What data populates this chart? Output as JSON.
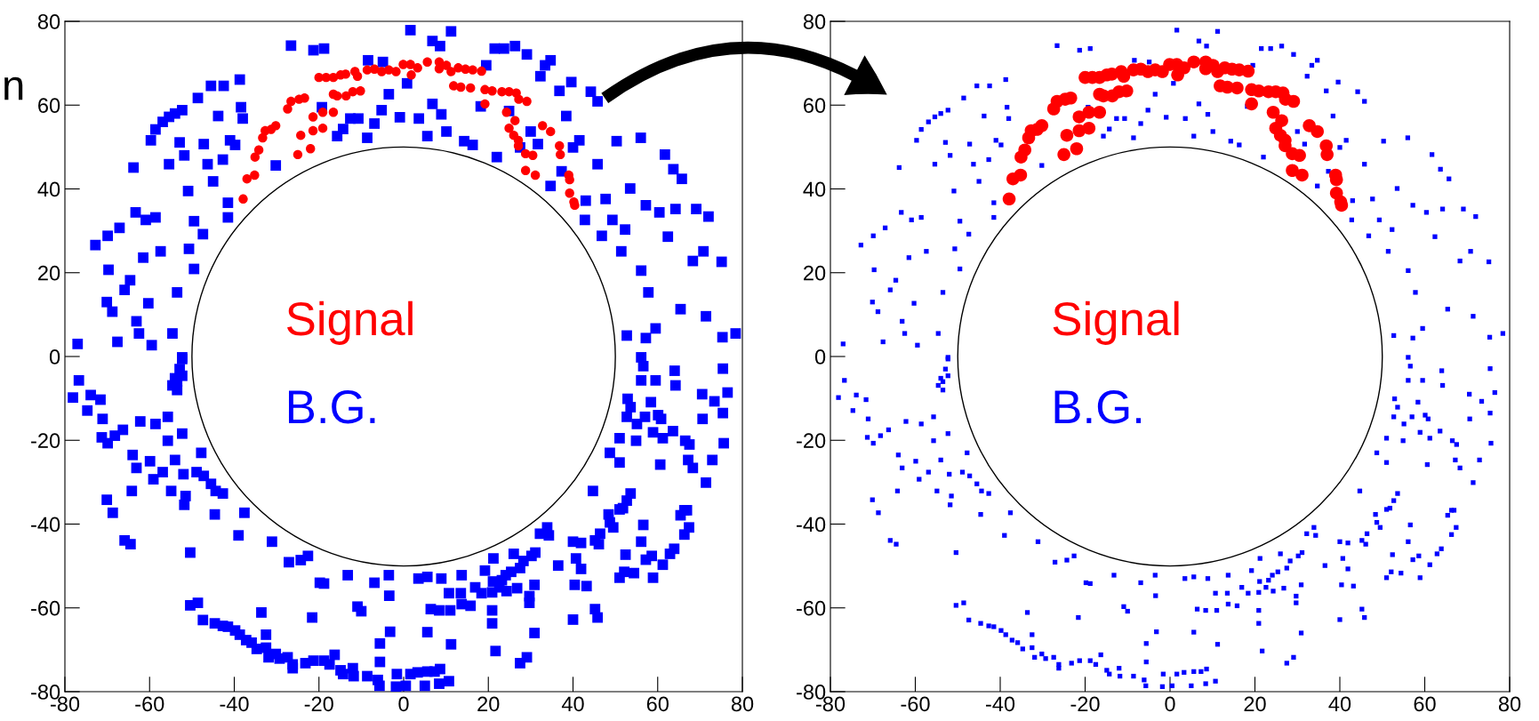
{
  "chart_data": [
    {
      "type": "scatter",
      "xlim": [
        -80,
        80
      ],
      "ylim": [
        -80,
        80
      ],
      "xticks": [
        -80,
        -60,
        -40,
        -20,
        0,
        20,
        40,
        60,
        80
      ],
      "yticks": [
        -80,
        -60,
        -40,
        -20,
        0,
        20,
        40,
        60,
        80
      ],
      "grid": false,
      "legend": false,
      "annotations": [
        "n"
      ],
      "series": [
        {
          "name": "Signal",
          "color": "#ff0000",
          "marker": "circle",
          "x": [
            -37.9,
            -37,
            -35.2,
            -35.1,
            -34.2,
            -33.3,
            -32.7,
            -31.3,
            -30.2,
            -27.4,
            -26.6,
            -24.7,
            -23.4,
            -25,
            -24.3,
            -22,
            -21.4,
            -21.4,
            -19.1,
            -19.1,
            -16.6,
            -16.6,
            -15.7,
            -13.6,
            -12,
            -10.2,
            -20,
            -18.3,
            -16.6,
            -14.9,
            -13.7,
            -11.5,
            -10.9,
            -8.6,
            -6.9,
            -5.2,
            -3.5,
            -1.8,
            -0.1,
            1.6,
            1.8,
            3.3,
            5.6,
            8.4,
            8.4,
            10.1,
            11.2,
            12.9,
            14.6,
            16.3,
            18.4,
            11.8,
            13.5,
            15.8,
            19.2,
            20.9,
            23.2,
            24.9,
            26.6,
            27.2,
            29.1,
            19.2,
            24.3,
            26.3,
            24.9,
            26,
            27.1,
            27.1,
            28.8,
            30.5,
            28.8,
            31.1,
            32.8,
            34.7,
            36.8,
            37,
            39,
            39.2,
            39.2,
            40.2,
            40.4
          ],
          "values": [
            37.6,
            42.4,
            43.3,
            47.6,
            49.3,
            52.2,
            53.9,
            54.2,
            55.1,
            59.1,
            60.9,
            61.4,
            61.7,
            48.2,
            52.8,
            49.6,
            53.9,
            57.2,
            58.3,
            54.5,
            58.3,
            62.6,
            62.2,
            62.2,
            63.2,
            63.4,
            66.6,
            66.6,
            66.6,
            67.2,
            67.4,
            68,
            66.9,
            68.4,
            68.6,
            68,
            68.4,
            68,
            69.7,
            69.7,
            67.2,
            68.9,
            70.3,
            70.3,
            68.7,
            69.5,
            68,
            68.9,
            68.6,
            68.4,
            68.1,
            64.6,
            64.3,
            64.1,
            63.7,
            63.4,
            63.2,
            63.2,
            62.9,
            61.4,
            60.9,
            60.3,
            58.3,
            56.3,
            54.5,
            52.8,
            51.6,
            50.3,
            48.4,
            48,
            44.4,
            43.3,
            55.1,
            53.7,
            50.3,
            48.2,
            43.3,
            42.2,
            39,
            36.9,
            36.1
          ]
        },
        {
          "name": "B.G.",
          "color": "#0000ff",
          "marker": "square",
          "x": [
            -77,
            -72.8,
            -69.9,
            -69.7,
            -70.1,
            -68.8,
            -67.6,
            -67.1,
            -65.9,
            -64.6,
            -63.8,
            -63.3,
            -63.1,
            -62.5,
            -61.5,
            -60.9,
            -60.3,
            -59.5,
            -59.7,
            -58.6,
            -56.9,
            -55.4,
            -54,
            -52.3,
            -57.4,
            -58.6,
            -54.6,
            -53.5,
            -52.3,
            -55.4,
            -52.9,
            -51.8,
            -50.9,
            -50.7,
            -49.5,
            -48.6,
            -47.2,
            -46.3,
            -45.5,
            -45,
            -43.8,
            -42.7,
            -42.5,
            -41.5,
            -41,
            -39.8,
            -38.7,
            -38.4,
            -49.5,
            -47.4,
            -41.5,
            -38,
            -30.2,
            -26.6,
            -21.3,
            -18.8,
            -19.3,
            -15.7,
            -14.3,
            -12.6,
            -8.6,
            -10.7,
            -6.9,
            -5.2,
            -3.5,
            -0.9,
            -8.4,
            -4.9,
            0.8,
            1.6,
            3.6,
            5.6,
            6.8,
            6.8,
            8.6,
            8.9,
            10.1,
            11.2,
            14.3,
            16.3,
            18.2,
            19.5,
            21.5,
            23.7,
            26.3,
            29.1,
            22,
            24.9,
            27.5,
            30,
            31.7,
            32.3,
            33.4,
            34.7,
            36.8,
            38.4,
            34.7,
            37.3,
            39.6,
            40,
            41.5,
            43,
            42.8,
            44.2,
            45.8,
            45.8,
            46.8,
            47.7,
            49.3,
            50.3,
            51.4,
            53.5,
            52.3,
            56,
            57.2,
            56.1,
            57.8,
            60.4,
            61.7,
            62.4,
            63.7,
            65.7,
            64.2,
            65.4,
            68.3,
            69.1,
            72,
            70.8,
            71.4,
            75.1,
            75.3,
            78.4,
            59.5,
            57.2,
            56.1,
            52.7,
            -78.1,
            -76.7,
            -74.7,
            -73.9,
            -71.6,
            -71.1,
            -71.3,
            -69.9,
            -68.2,
            -66.3,
            -70.1,
            -68.7,
            -65.9,
            -64.5,
            -64,
            -63.1,
            -62.2,
            -64.2,
            -59.9,
            -59.1,
            -58.6,
            -56.9,
            -55.7,
            -55.7,
            -54.9,
            -54,
            -52.3,
            -52,
            -51.8,
            -51.5,
            -50.4,
            -50.4,
            -48.9,
            -48.6,
            -47.8,
            -47.2,
            -47.4,
            -45.5,
            -44.4,
            -42.7,
            -44.6,
            -44.6,
            -42.7,
            -41.5,
            -39.8,
            -39,
            -37.6,
            -38.7,
            -37.2,
            -35.9,
            -34.7,
            -33.6,
            -32.5,
            -32.5,
            -31.9,
            -31.1,
            -30.2,
            -29.3,
            -27.4,
            -27.1,
            -26.2,
            -26.2,
            -24.3,
            -23.2,
            -22.6,
            -21.6,
            -21.3,
            -19.8,
            -18.8,
            -18.8,
            -17.5,
            -16.3,
            -14.9,
            -13.2,
            -14.3,
            -12,
            -11.8,
            -10.9,
            -10,
            -8.6,
            -6.9,
            -6.1,
            -5.7,
            -5.6,
            -5.6,
            -3.5,
            -3.4,
            -3.2,
            -1.6,
            -1.8,
            0.5,
            1.6,
            3.5,
            3.3,
            5,
            5.6,
            5.6,
            5.6,
            6.4,
            7.3,
            8.4,
            8.4,
            8.6,
            8.9,
            10.7,
            11,
            11.2,
            10.7,
            13.5,
            13.7,
            13.7,
            15.8,
            16.9,
            18.4,
            19.2,
            20.9,
            21.1,
            21.2,
            20.9,
            20.9,
            21.7,
            22.6,
            23.2,
            24.1,
            24.3,
            25.4,
            26,
            26.8,
            27.5,
            27.5,
            28.3,
            29.1,
            29.7,
            29.7,
            30.2,
            30.9,
            31.1,
            30.9,
            32.2,
            33.9,
            34.3,
            36.5,
            40,
            40,
            40.4,
            40.7,
            41.9,
            41.9,
            43.2,
            44.7,
            45.2,
            45.2,
            46.1,
            45.8,
            46.4,
            48.4,
            48.7,
            48.7,
            49.5,
            51,
            51,
            51,
            51,
            51.8,
            52.1,
            52.4,
            52.7,
            52.7,
            52.9,
            53.6,
            54.4,
            53.6,
            54.9,
            55.1,
            56.1,
            56.1,
            56.6,
            56.6,
            57,
            57.2,
            58.4,
            58.6,
            58.9,
            58.9,
            59.5,
            60.1,
            60.6,
            60.8,
            61.2,
            61.2,
            62.9,
            63.6,
            63.9,
            64,
            64.2,
            65.4,
            66.3,
            66.5,
            66.3,
            66.9,
            67.2,
            67.4,
            67.5,
            68.3,
            70.5,
            70.6,
            71.4,
            72.9,
            73.4,
            75.4,
            75.4,
            75.6,
            76.5,
            -52.9,
            -53.5,
            -54,
            -52.3,
            -52.3,
            -53.5,
            -54.6
          ],
          "values": [
            3,
            26.6,
            28.8,
            20.7,
            13,
            10.7,
            3.5,
            30.7,
            15.9,
            18.2,
            45.1,
            34.4,
            8.4,
            5.5,
            23.6,
            32.6,
            12.7,
            2.7,
            51.6,
            54.2,
            56,
            57.2,
            58,
            58.8,
            25.1,
            33.2,
            5.5,
            15.3,
            -0.2,
            45.9,
            51.1,
            48,
            39.5,
            25.7,
            32.3,
            61.7,
            50.7,
            45.9,
            64.6,
            41.8,
            57.4,
            47,
            64.6,
            36.7,
            51.6,
            50.5,
            66.1,
            59.5,
            20.9,
            29.2,
            33.2,
            56.8,
            45.6,
            74.2,
            73.1,
            73.5,
            59.5,
            52.6,
            54.3,
            56.8,
            52.2,
            56.8,
            55.6,
            58.8,
            62.6,
            57.1,
            70.7,
            70.3,
            65.2,
            77.9,
            56.8,
            52.6,
            60.3,
            75.3,
            74.1,
            57.8,
            53.7,
            77.6,
            51.4,
            50.5,
            59.7,
            69.5,
            73.5,
            73.5,
            74.1,
            72.1,
            47.6,
            58.6,
            49.9,
            53.7,
            50.7,
            66.9,
            69.5,
            70.7,
            63.4,
            57.4,
            40.7,
            44.2,
            65.5,
            49.9,
            51.6,
            37.2,
            32.6,
            63.2,
            60.9,
            45.9,
            28.8,
            37.6,
            32.6,
            51.4,
            25.1,
            40.1,
            30.3,
            52.2,
            36.1,
            20.5,
            15.3,
            34.4,
            48.2,
            28.6,
            44.7,
            42.4,
            35.2,
            11.3,
            22.8,
            35.2,
            33.4,
            25.1,
            9.6,
            22.6,
            4.6,
            5.5,
            6.7,
            4.4,
            -0.2,
            5,
            -9.8,
            -5.7,
            -12.9,
            -9.2,
            -10.3,
            -14.9,
            -19.3,
            -20.7,
            -18.9,
            -17.5,
            -34.2,
            -37.3,
            -43.9,
            -44.8,
            -23.5,
            -26.6,
            -15.5,
            -32.1,
            -25,
            -29.3,
            -16.1,
            -27.6,
            -20.1,
            -14.4,
            -32.1,
            -24.7,
            -18.4,
            -28.1,
            -35.4,
            -33.3,
            -46.8,
            -59.4,
            -27.6,
            -58.8,
            -23,
            -28.5,
            -62.9,
            -30.4,
            -32.1,
            -32.7,
            -37.7,
            -63.7,
            -64.3,
            -64.5,
            -65.4,
            -42.7,
            -37.3,
            -66.4,
            -67.7,
            -68.3,
            -69.8,
            -61.1,
            -66.4,
            -69.5,
            -71.8,
            -44.2,
            -71,
            -72.1,
            -71.8,
            -49.1,
            -73.5,
            -74.4,
            -48.6,
            -73.2,
            -47.6,
            -62.3,
            -72.6,
            -54,
            -54.2,
            -72.6,
            -73.5,
            -71.2,
            -74.9,
            -52.2,
            -75.8,
            -74.4,
            -76.3,
            -59.7,
            -60.8,
            -76.3,
            -54,
            -77.2,
            -78.6,
            -68.5,
            -72.9,
            -52.2,
            -57.1,
            -65.7,
            -75.8,
            -78.8,
            -78.6,
            -75.8,
            -53,
            -75.4,
            -78.6,
            -52.6,
            -75.2,
            -65.8,
            -60.3,
            -75.2,
            -78.1,
            -60.6,
            -74.6,
            -53,
            -56.5,
            -60.6,
            -68.7,
            -77.5,
            -56.5,
            -52.2,
            -59.1,
            -59.5,
            -55.1,
            -56.5,
            -51.1,
            -56.3,
            -53.7,
            -48.2,
            -60.6,
            -63.7,
            -70.3,
            -55.1,
            -53.4,
            -52.2,
            -56,
            -51.4,
            -47.1,
            -55.3,
            -50.5,
            -73.2,
            -48.8,
            -71.8,
            -57.2,
            -58.8,
            -47.6,
            -54.5,
            -46.8,
            -66,
            -42.3,
            -40.8,
            -42.7,
            -49.9,
            -44.2,
            -62.8,
            -54.5,
            -48.2,
            -44.5,
            -50.7,
            -54.8,
            -32.1,
            -60.3,
            -43.9,
            -44.8,
            -62.3,
            -42.3,
            -37.7,
            -39.6,
            -23,
            -40.8,
            -36.5,
            -52.8,
            -19.5,
            -25.3,
            -36.2,
            -51.4,
            -47.3,
            -14.4,
            -34.4,
            -10.1,
            -32.7,
            -51.7,
            -12.1,
            -20.1,
            -16.1,
            -5.7,
            -44.2,
            -40.2,
            -2.3,
            -14.4,
            -48.5,
            -10.9,
            -47.6,
            -18.1,
            -52.8,
            -5.7,
            -14,
            -25.8,
            -14.9,
            -19.5,
            -49.7,
            -47.1,
            -17.8,
            -45.9,
            -3.4,
            -6.9,
            -37.9,
            -36.7,
            -20.1,
            -42.5,
            -36.7,
            -24.7,
            -40.8,
            -21,
            -26.6,
            -9,
            -14.9,
            -30.1,
            -24.7,
            -10.7,
            -13.5,
            -2.9,
            -20.7,
            -8.6,
            -3,
            -6,
            -5.2,
            -0.6,
            -4.6,
            -8,
            -6.9
          ]
        }
      ]
    },
    {
      "type": "scatter",
      "xlim": [
        -80,
        80
      ],
      "ylim": [
        -80,
        80
      ],
      "xticks": [
        -80,
        -60,
        -40,
        -20,
        0,
        20,
        40,
        60,
        80
      ],
      "yticks": [
        -80,
        -60,
        -40,
        -20,
        0,
        20,
        40,
        60,
        80
      ],
      "grid": false,
      "legend": false,
      "series": [
        {
          "name": "Signal",
          "color": "#ff0000",
          "marker": "circle",
          "x": [
            -37.9,
            -37,
            -35.2,
            -35.1,
            -34.2,
            -33.3,
            -32.7,
            -31.3,
            -30.2,
            -27.4,
            -26.6,
            -24.7,
            -23.4,
            -25,
            -24.3,
            -22,
            -21.4,
            -21.4,
            -19.1,
            -19.1,
            -16.6,
            -16.6,
            -15.7,
            -13.6,
            -12,
            -10.2,
            -20,
            -18.3,
            -16.6,
            -14.9,
            -13.7,
            -11.5,
            -10.9,
            -8.6,
            -6.9,
            -5.2,
            -3.5,
            -1.8,
            -0.1,
            1.6,
            1.8,
            3.3,
            5.6,
            8.4,
            8.4,
            10.1,
            11.2,
            12.9,
            14.6,
            16.3,
            18.4,
            11.8,
            13.5,
            15.8,
            19.2,
            20.9,
            23.2,
            24.9,
            26.6,
            27.2,
            29.1,
            19.2,
            24.3,
            26.3,
            24.9,
            26,
            27.1,
            27.1,
            28.8,
            30.5,
            28.8,
            31.1,
            32.8,
            34.7,
            36.8,
            37,
            39,
            39.2,
            39.2,
            40.2,
            40.4
          ],
          "values": [
            37.6,
            42.4,
            43.3,
            47.6,
            49.3,
            52.2,
            53.9,
            54.2,
            55.1,
            59.1,
            60.9,
            61.4,
            61.7,
            48.2,
            52.8,
            49.6,
            53.9,
            57.2,
            58.3,
            54.5,
            58.3,
            62.6,
            62.2,
            62.2,
            63.2,
            63.4,
            66.6,
            66.6,
            66.6,
            67.2,
            67.4,
            68,
            66.9,
            68.4,
            68.6,
            68,
            68.4,
            68,
            69.7,
            69.7,
            67.2,
            68.9,
            70.3,
            70.3,
            68.7,
            69.5,
            68,
            68.9,
            68.6,
            68.4,
            68.1,
            64.6,
            64.3,
            64.1,
            63.7,
            63.4,
            63.2,
            63.2,
            62.9,
            61.4,
            60.9,
            60.3,
            58.3,
            56.3,
            54.5,
            52.8,
            51.6,
            50.3,
            48.4,
            48,
            44.4,
            43.3,
            55.1,
            53.7,
            50.3,
            48.2,
            43.3,
            42.2,
            39,
            36.9,
            36.1
          ]
        },
        {
          "name": "B.G.",
          "color": "#0000ff",
          "marker": "square",
          "x": [
            -77,
            -72.8,
            -69.9,
            -69.7,
            -70.1,
            -68.8,
            -67.6,
            -67.1,
            -65.9,
            -64.6,
            -63.8,
            -63.3,
            -63.1,
            -62.5,
            -61.5,
            -60.9,
            -60.3,
            -59.5,
            -59.7,
            -58.6,
            -56.9,
            -55.4,
            -54,
            -52.3,
            -57.4,
            -58.6,
            -54.6,
            -53.5,
            -52.3,
            -55.4,
            -52.9,
            -51.8,
            -50.9,
            -50.7,
            -49.5,
            -48.6,
            -47.2,
            -46.3,
            -45.5,
            -45,
            -43.8,
            -42.7,
            -42.5,
            -41.5,
            -41,
            -39.8,
            -38.7,
            -38.4,
            -49.5,
            -47.4,
            -41.5,
            -38,
            -30.2,
            -26.6,
            -21.3,
            -18.8,
            -19.3,
            -15.7,
            -14.3,
            -12.6,
            -8.6,
            -10.7,
            -6.9,
            -5.2,
            -3.5,
            -0.9,
            -8.4,
            -4.9,
            0.8,
            1.6,
            3.6,
            5.6,
            6.8,
            6.8,
            8.6,
            8.9,
            10.1,
            11.2,
            14.3,
            16.3,
            18.2,
            19.5,
            21.5,
            23.7,
            26.3,
            29.1,
            22,
            24.9,
            27.5,
            30,
            31.7,
            32.3,
            33.4,
            34.7,
            36.8,
            38.4,
            34.7,
            37.3,
            39.6,
            40,
            41.5,
            43,
            42.8,
            44.2,
            45.8,
            45.8,
            46.8,
            47.7,
            49.3,
            50.3,
            51.4,
            53.5,
            52.3,
            56,
            57.2,
            56.1,
            57.8,
            60.4,
            61.7,
            62.4,
            63.7,
            65.7,
            64.2,
            65.4,
            68.3,
            69.1,
            72,
            70.8,
            71.4,
            75.1,
            75.3,
            78.4,
            59.5,
            57.2,
            56.1,
            52.7,
            -78.1,
            -76.7,
            -74.7,
            -73.9,
            -71.6,
            -71.1,
            -71.3,
            -69.9,
            -68.2,
            -66.3,
            -70.1,
            -68.7,
            -65.9,
            -64.5,
            -64,
            -63.1,
            -62.2,
            -64.2,
            -59.9,
            -59.1,
            -58.6,
            -56.9,
            -55.7,
            -55.7,
            -54.9,
            -54,
            -52.3,
            -52,
            -51.8,
            -51.5,
            -50.4,
            -50.4,
            -48.9,
            -48.6,
            -47.8,
            -47.2,
            -47.4,
            -45.5,
            -44.4,
            -42.7,
            -44.6,
            -44.6,
            -42.7,
            -41.5,
            -39.8,
            -39,
            -37.6,
            -38.7,
            -37.2,
            -35.9,
            -34.7,
            -33.6,
            -32.5,
            -32.5,
            -31.9,
            -31.1,
            -30.2,
            -29.3,
            -27.4,
            -27.1,
            -26.2,
            -26.2,
            -24.3,
            -23.2,
            -22.6,
            -21.6,
            -21.3,
            -19.8,
            -18.8,
            -18.8,
            -17.5,
            -16.3,
            -14.9,
            -13.2,
            -14.3,
            -12,
            -11.8,
            -10.9,
            -10,
            -8.6,
            -6.9,
            -6.1,
            -5.7,
            -5.6,
            -5.6,
            -3.5,
            -3.4,
            -3.2,
            -1.6,
            -1.8,
            0.5,
            1.6,
            3.5,
            3.3,
            5,
            5.6,
            5.6,
            5.6,
            6.4,
            7.3,
            8.4,
            8.4,
            8.6,
            8.9,
            10.7,
            11,
            11.2,
            10.7,
            13.5,
            13.7,
            13.7,
            15.8,
            16.9,
            18.4,
            19.2,
            20.9,
            21.1,
            21.2,
            20.9,
            20.9,
            21.7,
            22.6,
            23.2,
            24.1,
            24.3,
            25.4,
            26,
            26.8,
            27.5,
            27.5,
            28.3,
            29.1,
            29.7,
            29.7,
            30.2,
            30.9,
            31.1,
            30.9,
            32.2,
            33.9,
            34.3,
            36.5,
            40,
            40,
            40.4,
            40.7,
            41.9,
            41.9,
            43.2,
            44.7,
            45.2,
            45.2,
            46.1,
            45.8,
            46.4,
            48.4,
            48.7,
            48.7,
            49.5,
            51,
            51,
            51,
            51,
            51.8,
            52.1,
            52.4,
            52.7,
            52.7,
            52.9,
            53.6,
            54.4,
            53.6,
            54.9,
            55.1,
            56.1,
            56.1,
            56.6,
            56.6,
            57,
            57.2,
            58.4,
            58.6,
            58.9,
            58.9,
            59.5,
            60.1,
            60.6,
            60.8,
            61.2,
            61.2,
            62.9,
            63.6,
            63.9,
            64,
            64.2,
            65.4,
            66.3,
            66.5,
            66.3,
            66.9,
            67.2,
            67.4,
            67.5,
            68.3,
            70.5,
            70.6,
            71.4,
            72.9,
            73.4,
            75.4,
            75.4,
            75.6,
            76.5,
            -52.9,
            -53.5,
            -54,
            -52.3,
            -52.3,
            -53.5,
            -54.6
          ],
          "values": [
            3,
            26.6,
            28.8,
            20.7,
            13,
            10.7,
            3.5,
            30.7,
            15.9,
            18.2,
            45.1,
            34.4,
            8.4,
            5.5,
            23.6,
            32.6,
            12.7,
            2.7,
            51.6,
            54.2,
            56,
            57.2,
            58,
            58.8,
            25.1,
            33.2,
            5.5,
            15.3,
            -0.2,
            45.9,
            51.1,
            48,
            39.5,
            25.7,
            32.3,
            61.7,
            50.7,
            45.9,
            64.6,
            41.8,
            57.4,
            47,
            64.6,
            36.7,
            51.6,
            50.5,
            66.1,
            59.5,
            20.9,
            29.2,
            33.2,
            56.8,
            45.6,
            74.2,
            73.1,
            73.5,
            59.5,
            52.6,
            54.3,
            56.8,
            52.2,
            56.8,
            55.6,
            58.8,
            62.6,
            57.1,
            70.7,
            70.3,
            65.2,
            77.9,
            56.8,
            52.6,
            60.3,
            75.3,
            74.1,
            57.8,
            53.7,
            77.6,
            51.4,
            50.5,
            59.7,
            69.5,
            73.5,
            73.5,
            74.1,
            72.1,
            47.6,
            null,
            null,
            53.7,
            50.7,
            66.9,
            69.5,
            70.7,
            63.4,
            57.4,
            40.7,
            44.2,
            65.5,
            49.9,
            51.6,
            37.2,
            32.6,
            63.2,
            60.9,
            45.9,
            28.8,
            37.6,
            32.6,
            51.4,
            25.1,
            40.1,
            30.3,
            52.2,
            36.1,
            20.5,
            15.3,
            34.4,
            48.2,
            28.6,
            44.7,
            42.4,
            35.2,
            11.3,
            22.8,
            35.2,
            33.4,
            25.1,
            9.6,
            22.6,
            4.6,
            5.5,
            6.7,
            4.4,
            -0.2,
            5,
            -9.8,
            -5.7,
            -12.9,
            -9.2,
            -10.3,
            -14.9,
            -19.3,
            -20.7,
            -18.9,
            -17.5,
            -34.2,
            -37.3,
            -43.9,
            -44.8,
            -23.5,
            -26.6,
            -15.5,
            -32.1,
            -25,
            -29.3,
            -16.1,
            -27.6,
            -20.1,
            -14.4,
            -32.1,
            -24.7,
            -18.4,
            -28.1,
            -35.4,
            -33.3,
            -46.8,
            -59.4,
            -27.6,
            -58.8,
            -23,
            -28.5,
            -62.9,
            -30.4,
            -32.1,
            -32.7,
            -37.7,
            -63.7,
            -64.3,
            -64.5,
            -65.4,
            -42.7,
            -37.3,
            -66.4,
            -67.7,
            -68.3,
            -69.8,
            -61.1,
            -66.4,
            -69.5,
            -71.8,
            -44.2,
            -71,
            -72.1,
            -71.8,
            -49.1,
            -73.5,
            -74.4,
            -48.6,
            -73.2,
            -47.6,
            -62.3,
            -72.6,
            -54,
            -54.2,
            -72.6,
            -73.5,
            -71.2,
            -74.9,
            -52.2,
            -75.8,
            -74.4,
            -76.3,
            -59.7,
            -60.8,
            -76.3,
            -54,
            -77.2,
            -78.6,
            -68.5,
            -72.9,
            -52.2,
            -57.1,
            -65.7,
            -75.8,
            -78.8,
            -78.6,
            -75.8,
            -53,
            -75.4,
            -78.6,
            -52.6,
            -75.2,
            -65.8,
            -60.3,
            -75.2,
            -78.1,
            -60.6,
            -74.6,
            -53,
            -56.5,
            -60.6,
            -68.7,
            -77.5,
            -56.5,
            -52.2,
            -59.1,
            -59.5,
            -55.1,
            -56.5,
            -51.1,
            -56.3,
            -53.7,
            -48.2,
            -60.6,
            -63.7,
            -70.3,
            -55.1,
            -53.4,
            -52.2,
            -56,
            -51.4,
            -47.1,
            -55.3,
            -50.5,
            -73.2,
            -48.8,
            -71.8,
            -57.2,
            -58.8,
            -47.6,
            -54.5,
            -46.8,
            -66,
            -42.3,
            -40.8,
            -42.7,
            -49.9,
            -44.2,
            -62.8,
            -54.5,
            -48.2,
            -44.5,
            -50.7,
            -54.8,
            -32.1,
            -60.3,
            -43.9,
            -44.8,
            -62.3,
            -42.3,
            -37.7,
            -39.6,
            -23,
            -40.8,
            -36.5,
            -52.8,
            -19.5,
            -25.3,
            -36.2,
            -51.4,
            -47.3,
            -14.4,
            -34.4,
            -10.1,
            -32.7,
            -51.7,
            -12.1,
            -20.1,
            -16.1,
            -5.7,
            -44.2,
            -40.2,
            -2.3,
            -14.4,
            -48.5,
            -10.9,
            -47.6,
            -18.1,
            -52.8,
            -5.7,
            -14,
            -25.8,
            -14.9,
            -19.5,
            -49.7,
            -47.1,
            -17.8,
            -45.9,
            -3.4,
            -6.9,
            -37.9,
            -36.7,
            -20.1,
            -42.5,
            -36.7,
            -24.7,
            -40.8,
            -21,
            -26.6,
            -9,
            -14.9,
            -30.1,
            -24.7,
            -10.7,
            -13.5,
            -2.9,
            -20.7,
            -8.6,
            -3,
            -6,
            -5.2,
            -0.6,
            -4.6,
            -8,
            -6.9
          ]
        }
      ]
    }
  ]
}
